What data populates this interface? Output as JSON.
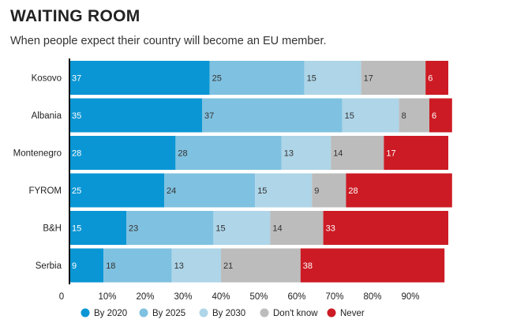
{
  "title": "WAITING ROOM",
  "subtitle": "When people expect their country will become an EU member.",
  "chart_data": {
    "type": "bar",
    "orientation": "horizontal",
    "stacked": true,
    "categories": [
      "Kosovo",
      "Albania",
      "Montenegro",
      "FYROM",
      "B&H",
      "Serbia"
    ],
    "series": [
      {
        "name": "By 2020",
        "color": "#0a96d4",
        "values": [
          37,
          35,
          28,
          25,
          15,
          9
        ]
      },
      {
        "name": "By 2025",
        "color": "#7fc1e0",
        "values": [
          25,
          37,
          28,
          24,
          23,
          18
        ]
      },
      {
        "name": "By 2030",
        "color": "#aed5e8",
        "values": [
          15,
          15,
          13,
          15,
          15,
          13
        ]
      },
      {
        "name": "Don't know",
        "color": "#bcbcbc",
        "values": [
          17,
          8,
          14,
          9,
          14,
          21
        ]
      },
      {
        "name": "Never",
        "color": "#cc1b24",
        "values": [
          6,
          6,
          17,
          28,
          33,
          38
        ]
      }
    ],
    "xticks": [
      "0",
      "10%",
      "20%",
      "30%",
      "40%",
      "50%",
      "60%",
      "70%",
      "80%",
      "90%"
    ],
    "xlim": [
      0,
      100
    ],
    "legend_position": "bottom",
    "grid": false
  }
}
